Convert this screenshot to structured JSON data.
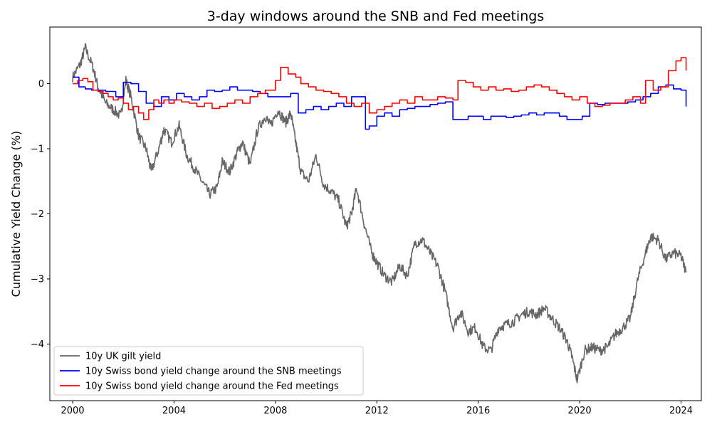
{
  "chart_data": {
    "type": "line",
    "title": "3-day windows around the SNB and Fed meetings",
    "xlabel": "",
    "ylabel": "Cumulative Yield Change (%)",
    "xlim": [
      1999.1,
      2024.8
    ],
    "ylim": [
      -4.87,
      0.87
    ],
    "xticks": [
      2000,
      2004,
      2008,
      2012,
      2016,
      2020,
      2024
    ],
    "xtick_labels": [
      "2000",
      "2004",
      "2008",
      "2012",
      "2016",
      "2020",
      "2024"
    ],
    "yticks": [
      0,
      -1,
      -2,
      -3,
      -4
    ],
    "ytick_labels": [
      "0",
      "−1",
      "−2",
      "−3",
      "−4"
    ],
    "grid": false,
    "legend_position": "lower-left",
    "series": [
      {
        "name": "10y UK gilt yield",
        "color": "#666666",
        "style": "noisy",
        "x": [
          2000.0,
          2000.3,
          2000.5,
          2000.8,
          2001.0,
          2001.3,
          2001.6,
          2001.9,
          2002.1,
          2002.3,
          2002.6,
          2002.9,
          2003.1,
          2003.4,
          2003.6,
          2003.9,
          2004.2,
          2004.5,
          2004.8,
          2005.1,
          2005.4,
          2005.7,
          2005.9,
          2006.2,
          2006.5,
          2006.7,
          2007.0,
          2007.3,
          2007.6,
          2007.8,
          2008.1,
          2008.4,
          2008.6,
          2008.8,
          2009.0,
          2009.3,
          2009.6,
          2009.9,
          2010.2,
          2010.5,
          2010.8,
          2011.0,
          2011.2,
          2011.5,
          2011.8,
          2012.0,
          2012.3,
          2012.6,
          2012.9,
          2013.2,
          2013.5,
          2013.8,
          2014.1,
          2014.4,
          2014.7,
          2015.0,
          2015.3,
          2015.6,
          2015.9,
          2016.2,
          2016.5,
          2016.8,
          2017.1,
          2017.4,
          2017.7,
          2018.0,
          2018.3,
          2018.6,
          2018.9,
          2019.2,
          2019.5,
          2019.7,
          2019.9,
          2020.2,
          2020.5,
          2020.8,
          2021.1,
          2021.4,
          2021.7,
          2022.0,
          2022.3,
          2022.6,
          2022.8,
          2023.1,
          2023.4,
          2023.7,
          2024.0,
          2024.2
        ],
        "values": [
          0.1,
          0.3,
          0.55,
          0.25,
          -0.05,
          -0.3,
          -0.4,
          -0.5,
          0.05,
          -0.2,
          -0.8,
          -1.0,
          -1.35,
          -1.0,
          -0.7,
          -0.9,
          -0.65,
          -1.1,
          -1.3,
          -1.5,
          -1.7,
          -1.6,
          -1.2,
          -1.35,
          -1.05,
          -0.9,
          -1.25,
          -0.7,
          -0.5,
          -0.65,
          -0.4,
          -0.6,
          -0.45,
          -0.9,
          -1.35,
          -1.5,
          -1.1,
          -1.55,
          -1.65,
          -1.8,
          -2.2,
          -2.0,
          -1.6,
          -2.15,
          -2.6,
          -2.75,
          -2.95,
          -3.05,
          -2.8,
          -2.95,
          -2.45,
          -2.4,
          -2.6,
          -2.8,
          -3.2,
          -3.75,
          -3.5,
          -3.8,
          -3.75,
          -4.05,
          -4.1,
          -3.75,
          -3.7,
          -3.65,
          -3.55,
          -3.5,
          -3.55,
          -3.45,
          -3.6,
          -3.75,
          -3.95,
          -4.2,
          -4.55,
          -4.1,
          -4.05,
          -4.1,
          -4.05,
          -3.85,
          -3.75,
          -3.6,
          -3.0,
          -2.6,
          -2.35,
          -2.4,
          -2.7,
          -2.6,
          -2.65,
          -2.9
        ]
      },
      {
        "name": "10y Swiss bond yield change around the SNB meetings",
        "color": "#0000ff",
        "style": "step",
        "x": [
          2000.0,
          2000.25,
          2000.5,
          2000.75,
          2001.0,
          2001.3,
          2001.7,
          2002.0,
          2002.3,
          2002.6,
          2002.9,
          2003.2,
          2003.5,
          2003.8,
          2004.1,
          2004.4,
          2004.7,
          2005.0,
          2005.3,
          2005.6,
          2005.9,
          2006.2,
          2006.5,
          2006.8,
          2007.1,
          2007.4,
          2007.7,
          2008.0,
          2008.3,
          2008.6,
          2008.9,
          2009.2,
          2009.5,
          2009.8,
          2010.1,
          2010.4,
          2010.7,
          2011.0,
          2011.3,
          2011.55,
          2011.7,
          2012.0,
          2012.3,
          2012.6,
          2012.9,
          2013.2,
          2013.5,
          2013.8,
          2014.1,
          2014.4,
          2014.7,
          2015.0,
          2015.3,
          2015.6,
          2015.9,
          2016.2,
          2016.5,
          2016.8,
          2017.1,
          2017.4,
          2017.7,
          2018.0,
          2018.3,
          2018.6,
          2018.9,
          2019.2,
          2019.5,
          2019.8,
          2020.1,
          2020.4,
          2020.7,
          2021.0,
          2021.3,
          2021.6,
          2021.9,
          2022.2,
          2022.5,
          2022.8,
          2023.1,
          2023.4,
          2023.7,
          2024.0,
          2024.2
        ],
        "values": [
          0.1,
          -0.05,
          -0.08,
          -0.1,
          -0.1,
          -0.12,
          -0.2,
          0.02,
          0.0,
          -0.12,
          -0.3,
          -0.35,
          -0.2,
          -0.25,
          -0.15,
          -0.2,
          -0.25,
          -0.2,
          -0.1,
          -0.12,
          -0.1,
          -0.05,
          -0.1,
          -0.1,
          -0.12,
          -0.15,
          -0.2,
          -0.2,
          -0.2,
          -0.15,
          -0.45,
          -0.4,
          -0.35,
          -0.4,
          -0.35,
          -0.3,
          -0.35,
          -0.2,
          -0.2,
          -0.7,
          -0.65,
          -0.5,
          -0.45,
          -0.5,
          -0.4,
          -0.38,
          -0.35,
          -0.35,
          -0.32,
          -0.3,
          -0.28,
          -0.55,
          -0.55,
          -0.5,
          -0.5,
          -0.55,
          -0.5,
          -0.5,
          -0.52,
          -0.5,
          -0.48,
          -0.45,
          -0.48,
          -0.45,
          -0.45,
          -0.5,
          -0.55,
          -0.55,
          -0.5,
          -0.3,
          -0.32,
          -0.3,
          -0.3,
          -0.3,
          -0.28,
          -0.25,
          -0.2,
          -0.15,
          -0.05,
          -0.02,
          -0.08,
          -0.1,
          -0.35
        ]
      },
      {
        "name": "10y Swiss bond yield change around the Fed meetings",
        "color": "#ff0000",
        "style": "step",
        "x": [
          2000.0,
          2000.2,
          2000.4,
          2000.6,
          2000.8,
          2001.0,
          2001.2,
          2001.4,
          2001.6,
          2001.8,
          2002.0,
          2002.2,
          2002.4,
          2002.6,
          2002.8,
          2003.0,
          2003.2,
          2003.4,
          2003.6,
          2003.8,
          2004.0,
          2004.3,
          2004.6,
          2004.9,
          2005.2,
          2005.5,
          2005.8,
          2006.1,
          2006.4,
          2006.7,
          2007.0,
          2007.3,
          2007.6,
          2007.8,
          2008.0,
          2008.2,
          2008.5,
          2008.8,
          2009.0,
          2009.3,
          2009.6,
          2009.9,
          2010.2,
          2010.5,
          2010.8,
          2011.1,
          2011.4,
          2011.7,
          2012.0,
          2012.3,
          2012.6,
          2012.9,
          2013.2,
          2013.5,
          2013.8,
          2014.1,
          2014.4,
          2014.7,
          2015.0,
          2015.2,
          2015.5,
          2015.8,
          2016.1,
          2016.4,
          2016.7,
          2017.0,
          2017.3,
          2017.6,
          2017.9,
          2018.2,
          2018.5,
          2018.8,
          2019.1,
          2019.4,
          2019.7,
          2020.0,
          2020.3,
          2020.6,
          2020.9,
          2021.2,
          2021.5,
          2021.8,
          2022.1,
          2022.4,
          2022.6,
          2022.9,
          2023.2,
          2023.5,
          2023.8,
          2024.0,
          2024.2
        ],
        "values": [
          0.0,
          0.05,
          0.08,
          0.03,
          -0.1,
          -0.12,
          -0.15,
          -0.2,
          -0.25,
          -0.22,
          -0.3,
          -0.4,
          -0.35,
          -0.45,
          -0.55,
          -0.4,
          -0.25,
          -0.3,
          -0.25,
          -0.3,
          -0.25,
          -0.28,
          -0.3,
          -0.35,
          -0.3,
          -0.38,
          -0.35,
          -0.3,
          -0.25,
          -0.3,
          -0.2,
          -0.15,
          -0.1,
          -0.1,
          0.05,
          0.25,
          0.15,
          0.1,
          0.0,
          -0.05,
          -0.1,
          -0.12,
          -0.15,
          -0.2,
          -0.3,
          -0.35,
          -0.3,
          -0.45,
          -0.4,
          -0.35,
          -0.3,
          -0.25,
          -0.3,
          -0.2,
          -0.25,
          -0.25,
          -0.2,
          -0.22,
          -0.25,
          0.05,
          0.02,
          -0.05,
          -0.1,
          -0.05,
          -0.1,
          -0.08,
          -0.12,
          -0.1,
          -0.05,
          -0.02,
          -0.05,
          -0.1,
          -0.15,
          -0.2,
          -0.25,
          -0.2,
          -0.3,
          -0.35,
          -0.33,
          -0.3,
          -0.3,
          -0.25,
          -0.2,
          -0.3,
          0.05,
          -0.1,
          -0.05,
          0.2,
          0.35,
          0.4,
          0.2
        ]
      }
    ]
  }
}
